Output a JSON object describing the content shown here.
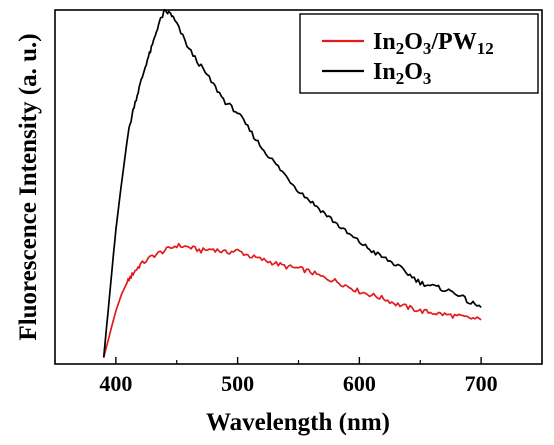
{
  "chart_data": {
    "type": "line",
    "xlabel": "Wavelength (nm)",
    "ylabel": "Fluorescence Intensity (a. u.)",
    "xlim": [
      350,
      750
    ],
    "ylim": [
      0,
      10
    ],
    "xticks": [
      "400",
      "500",
      "600",
      "700"
    ],
    "xtick_values": [
      400,
      500,
      600,
      700
    ],
    "grid": false,
    "legend_position": "top-right",
    "series": [
      {
        "name": "In2O3/PW12",
        "legend": {
          "base1": "In",
          "sub1": "2",
          "base2": "O",
          "sub2": "3",
          "base3": "/PW",
          "sub3": "12"
        },
        "color": "#e31a1c",
        "x": [
          390,
          395,
          400,
          405,
          410,
          415,
          420,
          430,
          440,
          450,
          460,
          470,
          480,
          490,
          500,
          510,
          520,
          530,
          540,
          550,
          560,
          570,
          580,
          590,
          600,
          610,
          620,
          630,
          640,
          650,
          660,
          670,
          680,
          690,
          700
        ],
        "y": [
          0.18,
          0.85,
          1.5,
          2.0,
          2.35,
          2.6,
          2.8,
          3.05,
          3.2,
          3.35,
          3.3,
          3.2,
          3.25,
          3.15,
          3.2,
          3.05,
          2.95,
          2.85,
          2.75,
          2.7,
          2.6,
          2.45,
          2.35,
          2.2,
          2.05,
          1.95,
          1.85,
          1.7,
          1.6,
          1.5,
          1.45,
          1.4,
          1.35,
          1.3,
          1.25
        ]
      },
      {
        "name": "In2O3",
        "legend": {
          "base1": "In",
          "sub1": "2",
          "base2": "O",
          "sub2": "3"
        },
        "color": "#000000",
        "x": [
          390,
          395,
          400,
          405,
          410,
          415,
          420,
          425,
          430,
          435,
          440,
          445,
          450,
          460,
          470,
          480,
          490,
          500,
          510,
          520,
          530,
          540,
          550,
          560,
          570,
          580,
          590,
          600,
          610,
          620,
          630,
          640,
          650,
          660,
          670,
          680,
          690,
          700
        ],
        "y": [
          0.18,
          2.0,
          3.8,
          5.2,
          6.5,
          7.3,
          7.9,
          8.5,
          9.0,
          9.6,
          9.95,
          9.9,
          9.6,
          8.9,
          8.4,
          7.9,
          7.4,
          7.1,
          6.6,
          6.1,
          5.7,
          5.3,
          4.9,
          4.6,
          4.3,
          4.0,
          3.7,
          3.45,
          3.2,
          3.0,
          2.8,
          2.55,
          2.3,
          2.2,
          2.1,
          2.0,
          1.75,
          1.6
        ]
      }
    ]
  }
}
